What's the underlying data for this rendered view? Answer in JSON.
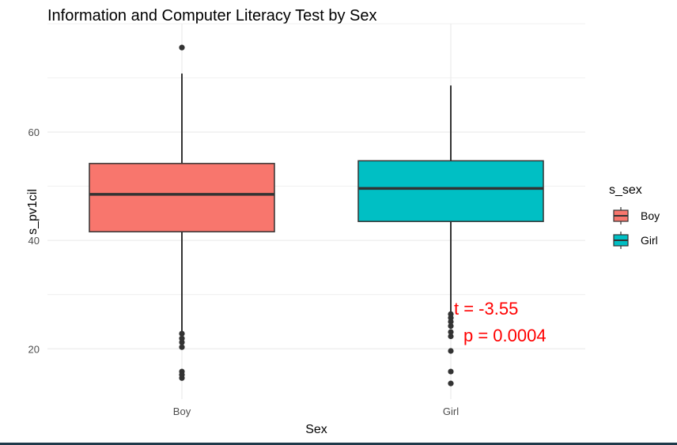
{
  "chart_data": {
    "type": "boxplot",
    "title": "Information and Computer Literacy Test by Sex",
    "xlabel": "Sex",
    "ylabel": "s_pv1cil",
    "categories": [
      "Boy",
      "Girl"
    ],
    "yticks": [
      20,
      40,
      60
    ],
    "ylim": [
      10.7,
      80
    ],
    "grid": true,
    "boxes": [
      {
        "category": "Boy",
        "color": "#F8766D",
        "whisker_low": 23.1,
        "q1": 41.6,
        "median": 48.5,
        "q3": 54.2,
        "whisker_high": 70.8,
        "outliers": [
          75.6,
          22.8,
          21.9,
          21.2,
          20.3,
          15.8,
          15.2,
          14.6
        ]
      },
      {
        "category": "Girl",
        "color": "#00BFC4",
        "whisker_low": 26.7,
        "q1": 43.5,
        "median": 49.6,
        "q3": 54.7,
        "whisker_high": 68.6,
        "outliers": [
          26.4,
          25.7,
          25.0,
          24.2,
          23.1,
          22.3,
          19.6,
          15.8,
          13.6
        ]
      }
    ],
    "legend": {
      "title": "s_sex",
      "position": "right",
      "entries": [
        {
          "label": "Boy",
          "color": "#F8766D"
        },
        {
          "label": "Girl",
          "color": "#00BFC4"
        }
      ]
    },
    "annotations": [
      {
        "text": "t = -3.55",
        "color": "#FF0000"
      },
      {
        "text": "p = 0.0004",
        "color": "#FF0000"
      }
    ]
  }
}
